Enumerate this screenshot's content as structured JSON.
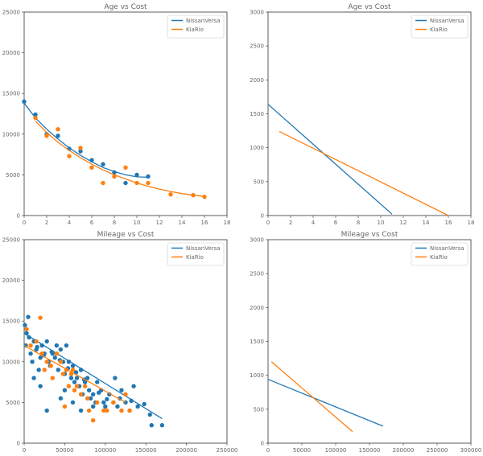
{
  "chart_data": [
    {
      "type": "scatter",
      "title": "Age vs Cost",
      "xlim": [
        0,
        18
      ],
      "ylim": [
        0,
        25000
      ],
      "xticks": [
        0,
        2,
        4,
        6,
        8,
        10,
        12,
        14,
        16,
        18
      ],
      "yticks": [
        0,
        5000,
        10000,
        15000,
        20000,
        25000
      ],
      "legend_position": "top-right",
      "grid": false,
      "series": [
        {
          "name": "NissanVersa",
          "color": "#1f77b4",
          "points": [
            [
              0,
              14000
            ],
            [
              1,
              12400
            ],
            [
              2,
              10000
            ],
            [
              3,
              9800
            ],
            [
              4,
              8200
            ],
            [
              5,
              7900
            ],
            [
              6,
              6800
            ],
            [
              7,
              6300
            ],
            [
              8,
              5300
            ],
            [
              9,
              4000
            ],
            [
              10,
              5000
            ],
            [
              11,
              4800
            ]
          ],
          "curve": [
            [
              0,
              13800
            ],
            [
              1,
              12000
            ],
            [
              2,
              10600
            ],
            [
              3,
              9400
            ],
            [
              4,
              8300
            ],
            [
              5,
              7400
            ],
            [
              6,
              6600
            ],
            [
              7,
              5900
            ],
            [
              8,
              5400
            ],
            [
              9,
              5000
            ],
            [
              10,
              4750
            ],
            [
              11,
              4700
            ]
          ]
        },
        {
          "name": "KiaRio",
          "color": "#ff7f0e",
          "points": [
            [
              1,
              12000
            ],
            [
              2,
              9800
            ],
            [
              3,
              10600
            ],
            [
              4,
              7300
            ],
            [
              5,
              8300
            ],
            [
              6,
              5900
            ],
            [
              7,
              4000
            ],
            [
              8,
              4800
            ],
            [
              9,
              5900
            ],
            [
              10,
              4000
            ],
            [
              11,
              4000
            ],
            [
              13,
              2600
            ],
            [
              15,
              2500
            ],
            [
              16,
              2300
            ]
          ],
          "curve": [
            [
              1,
              11600
            ],
            [
              2,
              10200
            ],
            [
              3,
              9000
            ],
            [
              4,
              8000
            ],
            [
              5,
              7100
            ],
            [
              6,
              6300
            ],
            [
              7,
              5600
            ],
            [
              8,
              5000
            ],
            [
              9,
              4500
            ],
            [
              10,
              4000
            ],
            [
              11,
              3600
            ],
            [
              12,
              3250
            ],
            [
              13,
              2950
            ],
            [
              14,
              2700
            ],
            [
              15,
              2500
            ],
            [
              16,
              2350
            ]
          ]
        }
      ]
    },
    {
      "type": "line",
      "title": "Age vs Cost",
      "xlim": [
        0,
        18
      ],
      "ylim": [
        0,
        3000
      ],
      "xticks": [
        0,
        2,
        4,
        6,
        8,
        10,
        12,
        14,
        16,
        18
      ],
      "yticks": [
        0,
        500,
        1000,
        1500,
        2000,
        2500,
        3000
      ],
      "legend_position": "top-right",
      "grid": false,
      "series": [
        {
          "name": "NissanVersa",
          "color": "#1f77b4",
          "line": [
            [
              0,
              1640
            ],
            [
              11,
              20
            ]
          ]
        },
        {
          "name": "KiaRio",
          "color": "#ff7f0e",
          "line": [
            [
              1,
              1240
            ],
            [
              16,
              0
            ]
          ]
        }
      ]
    },
    {
      "type": "scatter",
      "title": "Mileage vs Cost",
      "xlim": [
        0,
        250000
      ],
      "ylim": [
        0,
        25000
      ],
      "xticks": [
        0,
        50000,
        100000,
        150000,
        200000,
        250000
      ],
      "yticks": [
        0,
        5000,
        10000,
        15000,
        20000,
        25000
      ],
      "legend_position": "top-right",
      "grid": false,
      "series": [
        {
          "name": "NissanVersa",
          "color": "#1f77b4",
          "points": [
            [
              1000,
              14500
            ],
            [
              3000,
              13500
            ],
            [
              5000,
              15500
            ],
            [
              2000,
              12000
            ],
            [
              8000,
              11000
            ],
            [
              10000,
              10000
            ],
            [
              12000,
              12500
            ],
            [
              15000,
              11500
            ],
            [
              18000,
              9000
            ],
            [
              20000,
              10500
            ],
            [
              22000,
              12000
            ],
            [
              25000,
              11000
            ],
            [
              28000,
              12500
            ],
            [
              30000,
              10000
            ],
            [
              32000,
              9500
            ],
            [
              35000,
              11000
            ],
            [
              38000,
              10500
            ],
            [
              40000,
              12000
            ],
            [
              42000,
              9000
            ],
            [
              45000,
              11500
            ],
            [
              48000,
              10000
            ],
            [
              50000,
              8500
            ],
            [
              52000,
              12000
            ],
            [
              55000,
              10000
            ],
            [
              58000,
              8000
            ],
            [
              60000,
              9500
            ],
            [
              62000,
              7500
            ],
            [
              65000,
              8000
            ],
            [
              68000,
              7000
            ],
            [
              70000,
              9000
            ],
            [
              72000,
              6000
            ],
            [
              75000,
              7500
            ],
            [
              78000,
              8000
            ],
            [
              80000,
              6500
            ],
            [
              82000,
              5500
            ],
            [
              85000,
              6000
            ],
            [
              88000,
              5000
            ],
            [
              90000,
              7500
            ],
            [
              95000,
              6500
            ],
            [
              98000,
              5000
            ],
            [
              100000,
              4500
            ],
            [
              105000,
              6000
            ],
            [
              110000,
              5000
            ],
            [
              112000,
              8000
            ],
            [
              115000,
              4500
            ],
            [
              118000,
              5500
            ],
            [
              120000,
              6500
            ],
            [
              125000,
              5000
            ],
            [
              130000,
              4000
            ],
            [
              135000,
              7000
            ],
            [
              140000,
              4500
            ],
            [
              155000,
              3500
            ],
            [
              157000,
              2200
            ],
            [
              170000,
              2200
            ],
            [
              12000,
              8000
            ],
            [
              20000,
              7000
            ],
            [
              28000,
              4000
            ],
            [
              45000,
              5500
            ],
            [
              50000,
              6500
            ],
            [
              60000,
              5000
            ],
            [
              70000,
              4000
            ],
            [
              85000,
              4500
            ],
            [
              6000,
              13000
            ],
            [
              16000,
              11800
            ],
            [
              24000,
              10800
            ],
            [
              34000,
              11200
            ],
            [
              44000,
              10200
            ],
            [
              54000,
              9200
            ],
            [
              64000,
              8700
            ],
            [
              74000,
              7800
            ],
            [
              92000,
              6200
            ],
            [
              102000,
              5400
            ],
            [
              132000,
              5200
            ],
            [
              148000,
              4800
            ]
          ],
          "line": [
            [
              0,
              13500
            ],
            [
              170000,
              3000
            ]
          ]
        },
        {
          "name": "KiaRio",
          "color": "#ff7f0e",
          "points": [
            [
              3000,
              14000
            ],
            [
              8000,
              12000
            ],
            [
              15000,
              12500
            ],
            [
              20000,
              15400
            ],
            [
              22000,
              11000
            ],
            [
              28000,
              10000
            ],
            [
              33000,
              9500
            ],
            [
              40000,
              11000
            ],
            [
              45000,
              10000
            ],
            [
              48000,
              8500
            ],
            [
              52000,
              9000
            ],
            [
              55000,
              7000
            ],
            [
              58000,
              8500
            ],
            [
              62000,
              6500
            ],
            [
              65000,
              7000
            ],
            [
              70000,
              6000
            ],
            [
              75000,
              7000
            ],
            [
              78000,
              5500
            ],
            [
              80000,
              4000
            ],
            [
              85000,
              2800
            ],
            [
              90000,
              5000
            ],
            [
              98000,
              4000
            ],
            [
              102000,
              4000
            ],
            [
              110000,
              5000
            ],
            [
              120000,
              4000
            ],
            [
              125000,
              6000
            ],
            [
              130000,
              4000
            ],
            [
              50000,
              4500
            ],
            [
              25000,
              9000
            ],
            [
              35000,
              8000
            ],
            [
              60000,
              9000
            ]
          ],
          "line": [
            [
              0,
              12000
            ],
            [
              125000,
              5000
            ]
          ]
        }
      ]
    },
    {
      "type": "line",
      "title": "Mileage vs Cost",
      "xlim": [
        0,
        300000
      ],
      "ylim": [
        0,
        3000
      ],
      "xticks": [
        0,
        50000,
        100000,
        150000,
        200000,
        250000,
        300000
      ],
      "yticks": [
        0,
        500,
        1000,
        1500,
        2000,
        2500,
        3000
      ],
      "legend_position": "top-right",
      "grid": false,
      "series": [
        {
          "name": "NissanVersa",
          "color": "#1f77b4",
          "line": [
            [
              0,
              940
            ],
            [
              170000,
              250
            ]
          ]
        },
        {
          "name": "KiaRio",
          "color": "#ff7f0e",
          "line": [
            [
              5000,
              1200
            ],
            [
              125000,
              170
            ]
          ]
        }
      ]
    }
  ]
}
